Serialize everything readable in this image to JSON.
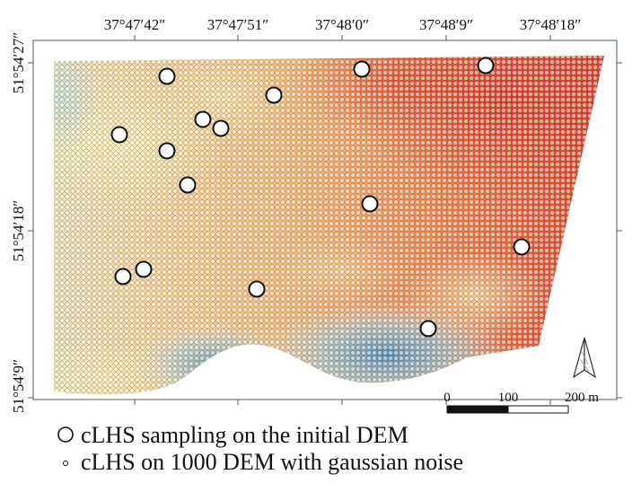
{
  "map": {
    "lon_labels": [
      "37°47′42″",
      "37°47′51″",
      "37°48′0″",
      "37°48′9″",
      "37°48′18″"
    ],
    "lat_labels": [
      "51°54′27″",
      "51°54′18″",
      "51°54′9″"
    ],
    "scale_bar": {
      "labels": [
        "0",
        "100",
        "200 m"
      ],
      "values_m": [
        0,
        100,
        200
      ]
    },
    "north_arrow_icon": "north-arrow-icon",
    "legend": [
      {
        "symbol": "large-open-circle",
        "label": "cLHS sampling on the initial DEM"
      },
      {
        "symbol": "small-open-circle",
        "label": "cLHS on 1000 DEM with gaussian noise"
      }
    ],
    "colors": {
      "high_elevation": "#d7301f",
      "mid_elevation": "#f5a15a",
      "low_mid_elevation": "#fbeaa3",
      "low_elevation": "#3a85b8",
      "point_fill": "#ffffff",
      "point_stroke": "#222222"
    }
  }
}
